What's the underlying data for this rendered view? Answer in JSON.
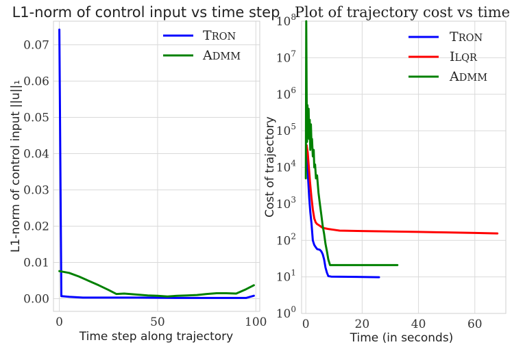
{
  "chart_data": [
    {
      "type": "line",
      "title": "L1-norm of control input vs time step",
      "xlabel": "Time step along trajectory",
      "ylabel": "L1-norm of control input ||u||₁",
      "yscale": "linear",
      "xlim": [
        -3,
        102
      ],
      "ylim": [
        -0.0035,
        0.0765
      ],
      "xticks": [
        0,
        50,
        100
      ],
      "xtick_labels": [
        "0",
        "50",
        "100"
      ],
      "yticks": [
        0,
        0.01,
        0.02,
        0.03,
        0.04,
        0.05,
        0.06,
        0.07
      ],
      "ytick_labels": [
        "0.00",
        "0.01",
        "0.02",
        "0.03",
        "0.04",
        "0.05",
        "0.06",
        "0.07"
      ],
      "grid": true,
      "legend_position": "top-right",
      "series": [
        {
          "name": "TRON",
          "color": "#0000ff",
          "x": [
            0,
            1,
            5,
            12,
            20,
            40,
            60,
            80,
            95,
            99
          ],
          "y": [
            0.0742,
            0.0007,
            0.0005,
            0.0003,
            0.0003,
            0.0003,
            0.0002,
            0.0002,
            0.0002,
            0.0008
          ]
        },
        {
          "name": "ADMM",
          "color": "#008000",
          "x": [
            0,
            5,
            10,
            15,
            20,
            25,
            29,
            33,
            38,
            45,
            50,
            55,
            60,
            65,
            70,
            75,
            80,
            85,
            90,
            95,
            99
          ],
          "y": [
            0.0076,
            0.0071,
            0.0061,
            0.0049,
            0.0037,
            0.0024,
            0.0013,
            0.0014,
            0.0012,
            0.0009,
            0.0008,
            0.0006,
            0.0008,
            0.0009,
            0.001,
            0.0013,
            0.0015,
            0.0015,
            0.0014,
            0.0026,
            0.0037
          ]
        }
      ]
    },
    {
      "type": "line",
      "title": "Plot of trajectory cost vs time",
      "xlabel": "Time (in seconds)",
      "ylabel": "Cost of trajectory",
      "yscale": "log",
      "xlim": [
        -1.5,
        71
      ],
      "ylim": [
        1,
        100000000
      ],
      "xticks": [
        0,
        20,
        40,
        60
      ],
      "xtick_labels": [
        "0",
        "20",
        "40",
        "60"
      ],
      "yticks": [
        1,
        10,
        100,
        1000,
        10000,
        100000,
        1000000,
        10000000,
        100000000
      ],
      "ytick_bases": [
        "10",
        "10",
        "10",
        "10",
        "10",
        "10",
        "10",
        "10",
        "10"
      ],
      "ytick_exponents": [
        "0",
        "1",
        "2",
        "3",
        "4",
        "5",
        "6",
        "7",
        "8"
      ],
      "grid": true,
      "legend_position": "top-right",
      "series": [
        {
          "name": "TRON",
          "color": "#0000ff",
          "x": [
            0.3,
            0.5,
            0.8,
            1.2,
            1.6,
            2.0,
            2.5,
            3.0,
            3.5,
            4.0,
            5.0,
            5.5,
            6.0,
            6.5,
            7.0,
            7.5,
            8.0,
            9.0,
            12.0,
            18.0,
            26.0
          ],
          "y": [
            40000,
            20000,
            5000,
            1500,
            600,
            300,
            100,
            75,
            65,
            58,
            55,
            50,
            42,
            30,
            18,
            13,
            10.5,
            10.2,
            10.1,
            10.0,
            9.8
          ]
        },
        {
          "name": "ILQR",
          "color": "#ff0000",
          "x": [
            0.3,
            0.7,
            1.0,
            1.5,
            2.0,
            2.5,
            3.0,
            3.5,
            4.0,
            5.0,
            6.0,
            8.0,
            10.0,
            12.0,
            20.0,
            30.0,
            40.0,
            50.0,
            60.0,
            68.0
          ],
          "y": [
            40000,
            25000,
            12000,
            4000,
            1500,
            700,
            400,
            310,
            280,
            250,
            220,
            205,
            195,
            185,
            180,
            175,
            170,
            165,
            160,
            155
          ]
        },
        {
          "name": "ADMM",
          "color": "#008000",
          "x": [
            0,
            0.15,
            0.3,
            0.45,
            0.6,
            0.8,
            1.0,
            1.2,
            1.4,
            1.6,
            1.8,
            2.0,
            2.2,
            2.5,
            2.8,
            3.0,
            3.3,
            3.6,
            4.0,
            4.5,
            5.0,
            5.5,
            6.0,
            6.5,
            7.0,
            7.5,
            8.0,
            8.3,
            8.6,
            9.0,
            10.0,
            15.0,
            20.0,
            25.0,
            32.5
          ],
          "y": [
            5000,
            100000000,
            1000000,
            50000,
            500000,
            100000,
            400000,
            60000,
            200000,
            30000,
            150000,
            50000,
            60000,
            20000,
            30000,
            10000,
            12000,
            5000,
            6000,
            2000,
            1000,
            500,
            250,
            150,
            80,
            50,
            30,
            25,
            21,
            21,
            21,
            21,
            21,
            21,
            21
          ]
        }
      ]
    }
  ]
}
